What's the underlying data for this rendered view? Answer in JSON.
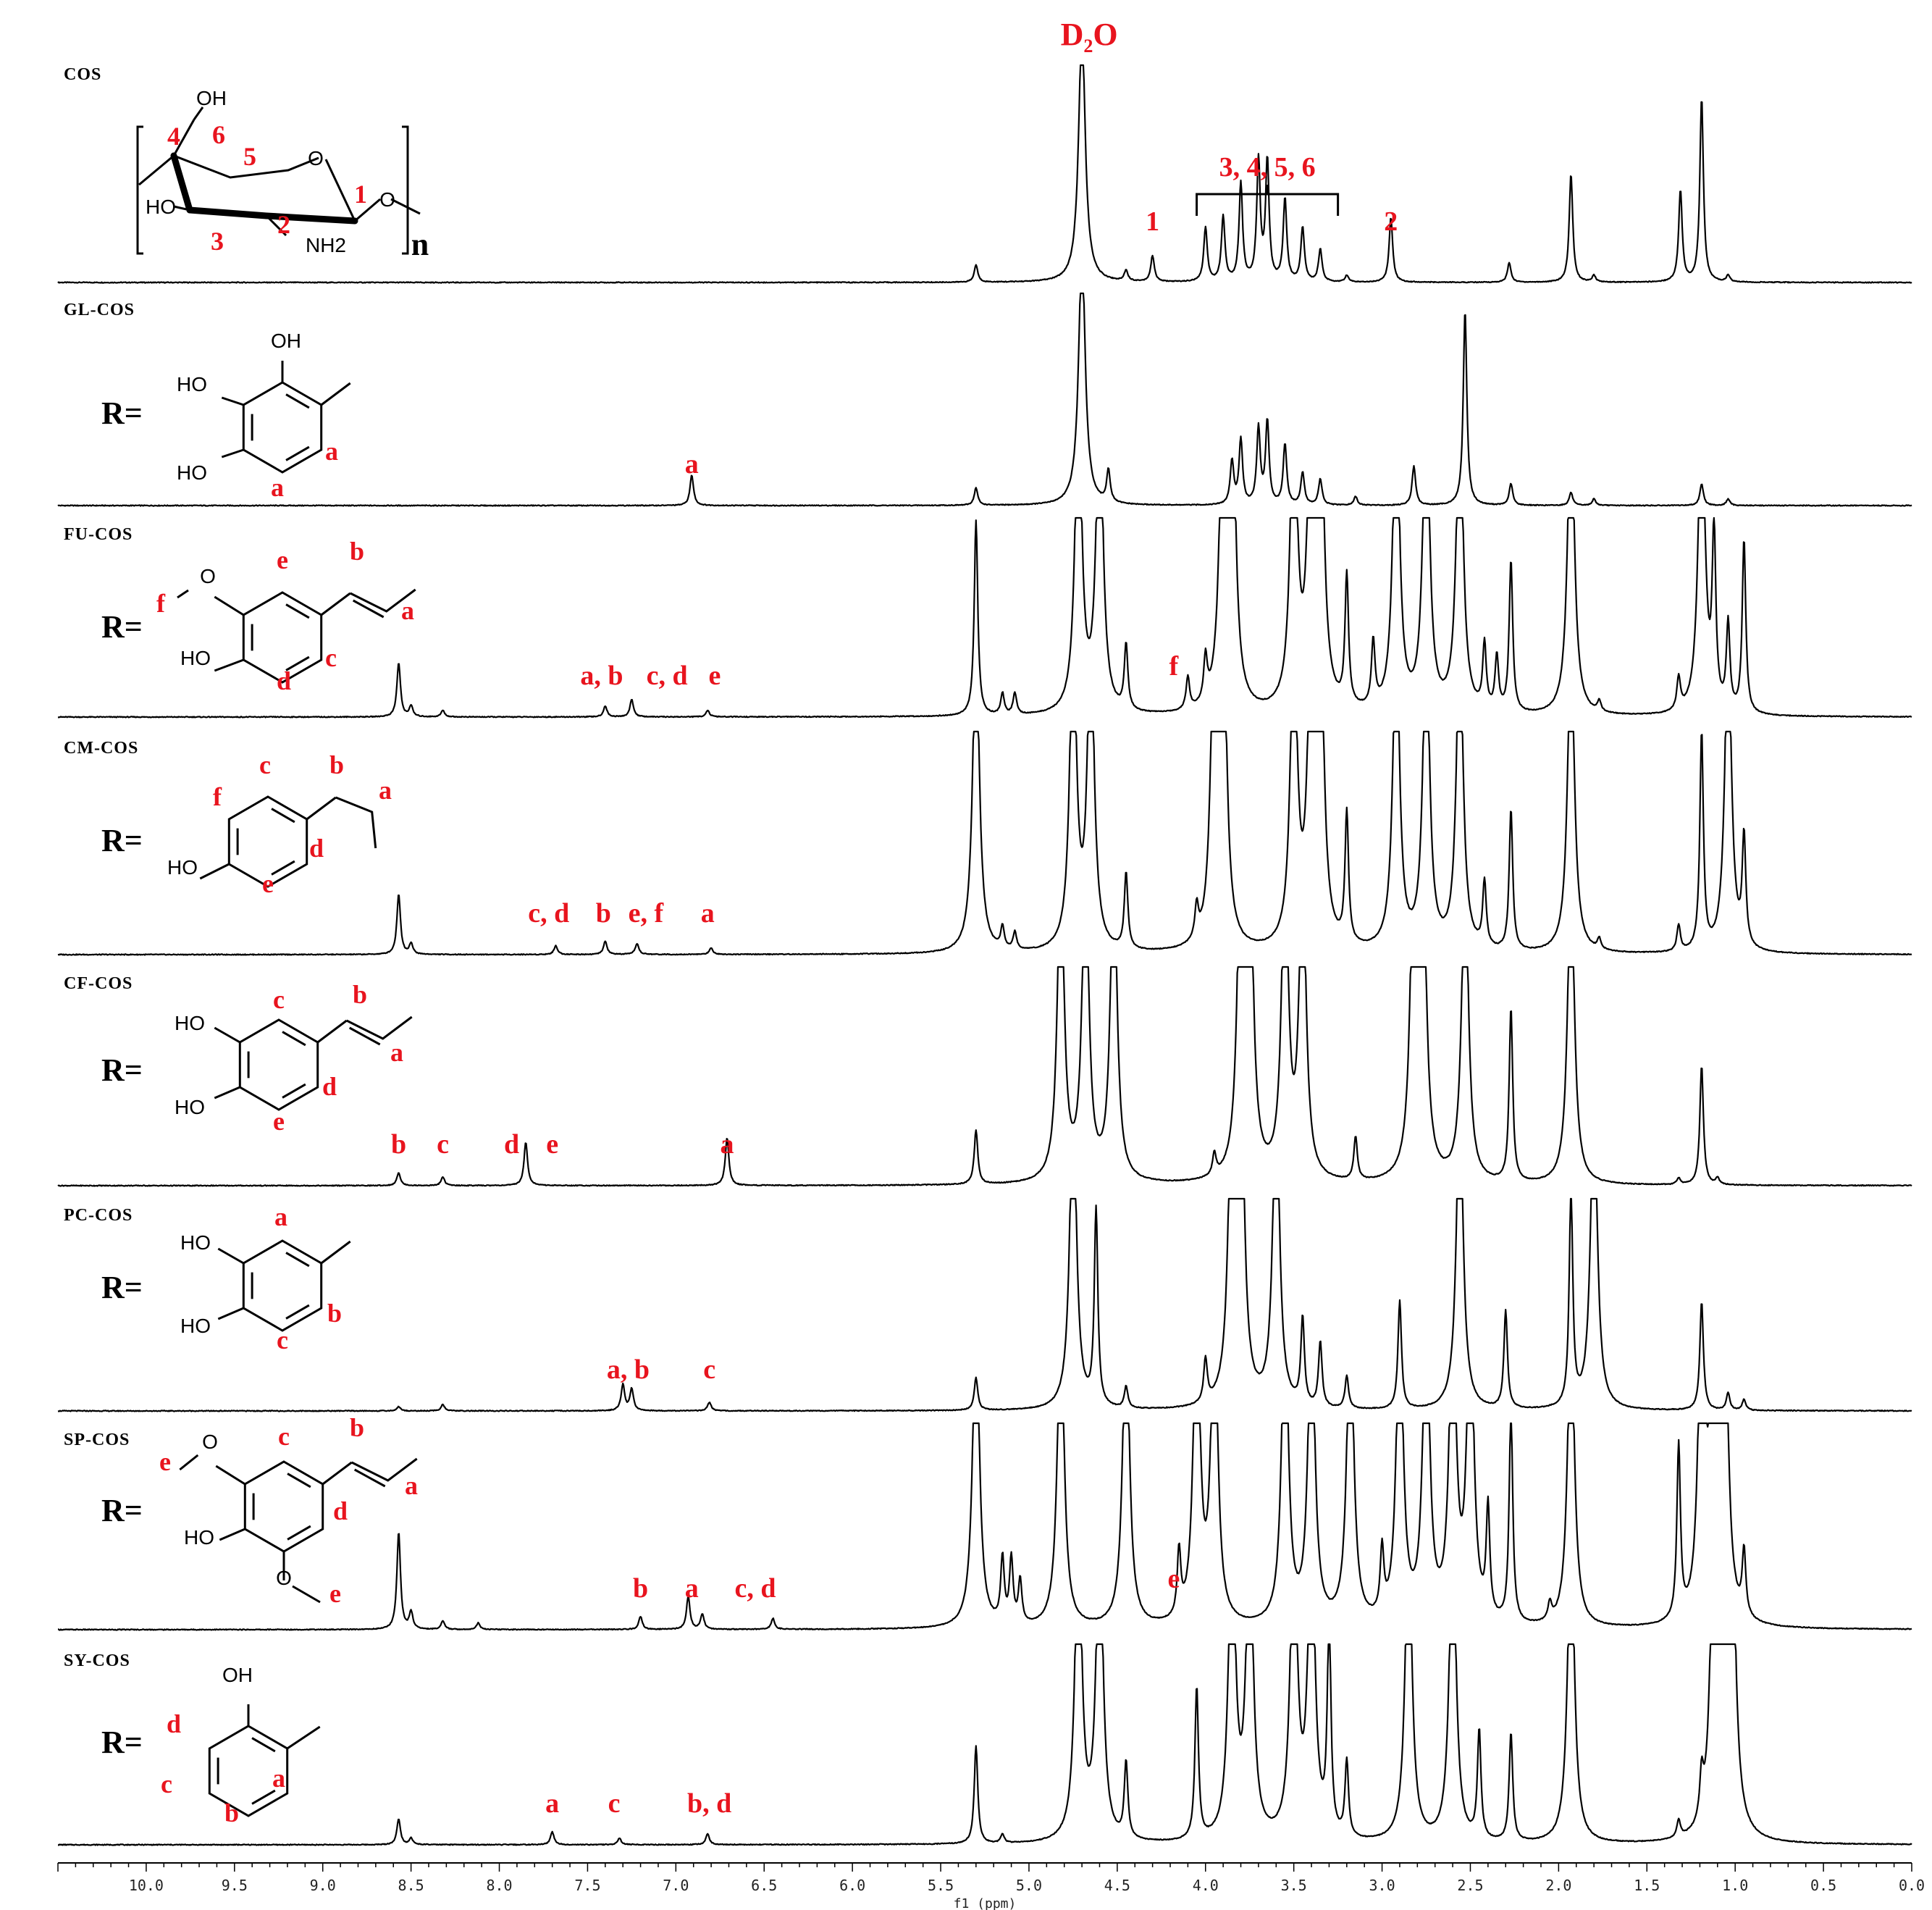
{
  "chart_data": {
    "type": "line",
    "xlabel": "f1 (ppm)",
    "xlim": [
      10.5,
      0.0
    ],
    "ticks": [
      "10.0",
      "9.5",
      "9.0",
      "8.5",
      "8.0",
      "7.5",
      "7.0",
      "6.5",
      "6.0",
      "5.5",
      "5.0",
      "4.5",
      "4.0",
      "3.5",
      "3.0",
      "2.5",
      "2.0",
      "1.5",
      "1.0",
      "0.5",
      "0.0"
    ],
    "ticks_values": [
      10.0,
      9.5,
      9.0,
      8.5,
      8.0,
      7.5,
      7.0,
      6.5,
      6.0,
      5.5,
      5.0,
      4.5,
      4.0,
      3.5,
      3.0,
      2.5,
      2.0,
      1.5,
      1.0,
      0.5,
      0.0
    ],
    "top_annotation": "D2O",
    "top_annotation_ppm": 4.7,
    "series": [
      {
        "name": "COS",
        "peak_labels": [
          {
            "text": "1",
            "ppm": 4.3
          },
          {
            "text": "3, 4, 5, 6",
            "ppm": 3.65,
            "bracket": [
              4.05,
              3.25
            ]
          },
          {
            "text": "2",
            "ppm": 2.95
          }
        ],
        "structure_labels": [
          "OH",
          "HO",
          "NH2",
          "O",
          "O",
          "n",
          "4",
          "6",
          "5",
          "1",
          "3",
          "2"
        ],
        "peaks": [
          [
            5.3,
            0.08
          ],
          [
            4.7,
            1.2
          ],
          [
            4.45,
            0.05
          ],
          [
            4.3,
            0.12
          ],
          [
            4.0,
            0.25
          ],
          [
            3.9,
            0.3
          ],
          [
            3.8,
            0.45
          ],
          [
            3.7,
            0.55
          ],
          [
            3.65,
            0.55
          ],
          [
            3.55,
            0.38
          ],
          [
            3.45,
            0.25
          ],
          [
            3.35,
            0.15
          ],
          [
            3.2,
            0.03
          ],
          [
            2.95,
            0.3
          ],
          [
            2.28,
            0.09
          ],
          [
            1.93,
            0.5
          ],
          [
            1.8,
            0.03
          ],
          [
            1.31,
            0.42
          ],
          [
            1.19,
            0.85
          ],
          [
            1.04,
            0.03
          ]
        ]
      },
      {
        "name": "GL-COS",
        "r_label": "R=",
        "peak_labels": [
          {
            "text": "a",
            "ppm": 6.91
          }
        ],
        "structure_labels": [
          "OH",
          "HO",
          "HO",
          "a",
          "a"
        ],
        "peaks": [
          [
            6.91,
            0.14
          ],
          [
            5.3,
            0.08
          ],
          [
            4.7,
            1.2
          ],
          [
            4.55,
            0.15
          ],
          [
            3.85,
            0.2
          ],
          [
            3.8,
            0.3
          ],
          [
            3.7,
            0.35
          ],
          [
            3.65,
            0.38
          ],
          [
            3.55,
            0.28
          ],
          [
            3.45,
            0.15
          ],
          [
            3.35,
            0.12
          ],
          [
            3.15,
            0.04
          ],
          [
            2.82,
            0.18
          ],
          [
            2.53,
            0.9
          ],
          [
            2.27,
            0.1
          ],
          [
            1.93,
            0.06
          ],
          [
            1.8,
            0.03
          ],
          [
            1.19,
            0.1
          ],
          [
            1.04,
            0.03
          ]
        ]
      },
      {
        "name": "FU-COS",
        "r_label": "R=",
        "peak_labels": [
          {
            "text": "a, b",
            "ppm": 7.42
          },
          {
            "text": "c, d",
            "ppm": 7.05
          },
          {
            "text": "e",
            "ppm": 6.78
          },
          {
            "text": "f",
            "ppm": 4.18
          }
        ],
        "structure_labels": [
          "O",
          "HO",
          "f",
          "e",
          "b",
          "a",
          "c",
          "d"
        ],
        "peaks": [
          [
            8.57,
            0.25
          ],
          [
            8.5,
            0.05
          ],
          [
            8.32,
            0.03
          ],
          [
            7.4,
            0.05
          ],
          [
            7.25,
            0.08
          ],
          [
            6.82,
            0.03
          ],
          [
            5.3,
            0.9
          ],
          [
            5.15,
            0.1
          ],
          [
            5.08,
            0.1
          ],
          [
            4.72,
            1.5
          ],
          [
            4.6,
            1.5
          ],
          [
            4.45,
            0.3
          ],
          [
            4.1,
            0.15
          ],
          [
            4.0,
            0.2
          ],
          [
            3.9,
            1.5
          ],
          [
            3.85,
            1.5
          ],
          [
            3.5,
            1.5
          ],
          [
            3.4,
            1.5
          ],
          [
            3.35,
            1.5
          ],
          [
            3.2,
            0.6
          ],
          [
            3.05,
            0.3
          ],
          [
            2.92,
            1.5
          ],
          [
            2.75,
            1.5
          ],
          [
            2.56,
            1.5
          ],
          [
            2.42,
            0.3
          ],
          [
            2.35,
            0.25
          ],
          [
            2.27,
            0.7
          ],
          [
            1.93,
            1.5
          ],
          [
            1.77,
            0.05
          ],
          [
            1.32,
            0.15
          ],
          [
            1.19,
            1.5
          ],
          [
            1.12,
            0.8
          ],
          [
            1.04,
            0.4
          ],
          [
            0.95,
            0.8
          ]
        ]
      },
      {
        "name": "CM-COS",
        "r_label": "R=",
        "peak_labels": [
          {
            "text": "c, d",
            "ppm": 7.72
          },
          {
            "text": "b",
            "ppm": 7.41
          },
          {
            "text": "e, f",
            "ppm": 7.17
          },
          {
            "text": "a",
            "ppm": 6.82
          }
        ],
        "structure_labels": [
          "HO",
          "f",
          "c",
          "b",
          "a",
          "d",
          "e"
        ],
        "peaks": [
          [
            8.57,
            0.28
          ],
          [
            8.5,
            0.05
          ],
          [
            7.68,
            0.04
          ],
          [
            7.4,
            0.06
          ],
          [
            7.22,
            0.05
          ],
          [
            6.8,
            0.03
          ],
          [
            5.3,
            1.5
          ],
          [
            5.15,
            0.1
          ],
          [
            5.08,
            0.08
          ],
          [
            4.75,
            1.5
          ],
          [
            4.65,
            1.5
          ],
          [
            4.45,
            0.35
          ],
          [
            4.05,
            0.15
          ],
          [
            3.95,
            1.5
          ],
          [
            3.9,
            1.5
          ],
          [
            3.5,
            1.5
          ],
          [
            3.4,
            1.5
          ],
          [
            3.35,
            1.5
          ],
          [
            3.2,
            0.6
          ],
          [
            2.92,
            1.5
          ],
          [
            2.75,
            1.5
          ],
          [
            2.56,
            1.5
          ],
          [
            2.42,
            0.3
          ],
          [
            2.27,
            0.65
          ],
          [
            1.93,
            1.5
          ],
          [
            1.77,
            0.05
          ],
          [
            1.32,
            0.12
          ],
          [
            1.19,
            1.0
          ],
          [
            1.04,
            1.5
          ],
          [
            0.95,
            0.5
          ]
        ]
      },
      {
        "name": "CF-COS",
        "r_label": "R=",
        "peak_labels": [
          {
            "text": "b",
            "ppm": 8.57
          },
          {
            "text": "c",
            "ppm": 8.32
          },
          {
            "text": "d",
            "ppm": 7.93
          },
          {
            "text": "e",
            "ppm": 7.7
          },
          {
            "text": "a",
            "ppm": 6.71
          }
        ],
        "structure_labels": [
          "HO",
          "HO",
          "c",
          "b",
          "a",
          "d",
          "e"
        ],
        "peaks": [
          [
            8.57,
            0.06
          ],
          [
            8.32,
            0.04
          ],
          [
            7.85,
            0.2
          ],
          [
            6.71,
            0.22
          ],
          [
            5.3,
            0.25
          ],
          [
            4.82,
            1.5
          ],
          [
            4.68,
            1.5
          ],
          [
            4.52,
            1.5
          ],
          [
            3.95,
            0.1
          ],
          [
            3.8,
            1.5
          ],
          [
            3.75,
            1.5
          ],
          [
            3.55,
            1.5
          ],
          [
            3.45,
            1.5
          ],
          [
            3.15,
            0.2
          ],
          [
            2.82,
            1.5
          ],
          [
            2.77,
            1.5
          ],
          [
            2.53,
            1.5
          ],
          [
            2.27,
            0.8
          ],
          [
            1.93,
            1.5
          ],
          [
            1.32,
            0.03
          ],
          [
            1.19,
            0.55
          ],
          [
            1.1,
            0.03
          ]
        ]
      },
      {
        "name": "PC-COS",
        "r_label": "R=",
        "peak_labels": [
          {
            "text": "a, b",
            "ppm": 7.27
          },
          {
            "text": "c",
            "ppm": 6.81
          }
        ],
        "structure_labels": [
          "a",
          "HO",
          "HO",
          "b",
          "c"
        ],
        "peaks": [
          [
            8.57,
            0.02
          ],
          [
            8.32,
            0.03
          ],
          [
            7.3,
            0.12
          ],
          [
            7.25,
            0.1
          ],
          [
            6.81,
            0.04
          ],
          [
            5.3,
            0.15
          ],
          [
            4.75,
            1.5
          ],
          [
            4.62,
            0.9
          ],
          [
            4.45,
            0.1
          ],
          [
            4.0,
            0.2
          ],
          [
            3.85,
            1.5
          ],
          [
            3.8,
            1.5
          ],
          [
            3.6,
            1.5
          ],
          [
            3.45,
            0.4
          ],
          [
            3.35,
            0.3
          ],
          [
            3.2,
            0.15
          ],
          [
            2.9,
            0.5
          ],
          [
            2.56,
            1.5
          ],
          [
            2.3,
            0.45
          ],
          [
            1.93,
            1.0
          ],
          [
            1.8,
            1.5
          ],
          [
            1.19,
            0.5
          ],
          [
            1.04,
            0.08
          ],
          [
            0.95,
            0.05
          ]
        ]
      },
      {
        "name": "SP-COS",
        "r_label": "R=",
        "peak_labels": [
          {
            "text": "b",
            "ppm": 7.2
          },
          {
            "text": "a",
            "ppm": 6.91
          },
          {
            "text": "c, d",
            "ppm": 6.55
          },
          {
            "text": "e",
            "ppm": 4.18
          }
        ],
        "structure_labels": [
          "O",
          "O",
          "HO",
          "e",
          "e",
          "c",
          "b",
          "a",
          "d"
        ],
        "peaks": [
          [
            8.57,
            0.45
          ],
          [
            8.5,
            0.08
          ],
          [
            8.32,
            0.04
          ],
          [
            8.12,
            0.03
          ],
          [
            7.2,
            0.06
          ],
          [
            6.93,
            0.15
          ],
          [
            6.85,
            0.07
          ],
          [
            6.45,
            0.05
          ],
          [
            5.3,
            1.5
          ],
          [
            5.15,
            0.3
          ],
          [
            5.1,
            0.3
          ],
          [
            5.05,
            0.2
          ],
          [
            4.82,
            1.5
          ],
          [
            4.45,
            1.5
          ],
          [
            4.15,
            0.3
          ],
          [
            4.05,
            1.5
          ],
          [
            3.95,
            1.5
          ],
          [
            3.55,
            1.5
          ],
          [
            3.4,
            1.5
          ],
          [
            3.18,
            1.5
          ],
          [
            3.0,
            0.3
          ],
          [
            2.9,
            1.5
          ],
          [
            2.75,
            1.5
          ],
          [
            2.6,
            1.5
          ],
          [
            2.5,
            1.5
          ],
          [
            2.4,
            0.5
          ],
          [
            2.27,
            1.0
          ],
          [
            2.05,
            0.08
          ],
          [
            1.93,
            1.5
          ],
          [
            1.32,
            0.8
          ],
          [
            1.19,
            1.5
          ],
          [
            1.12,
            1.5
          ],
          [
            1.06,
            1.5
          ],
          [
            0.95,
            0.3
          ]
        ]
      },
      {
        "name": "SY-COS",
        "r_label": "R=",
        "peak_labels": [
          {
            "text": "a",
            "ppm": 7.7
          },
          {
            "text": "c",
            "ppm": 7.35
          },
          {
            "text": "b, d",
            "ppm": 6.81
          }
        ],
        "structure_labels": [
          "OH",
          "d",
          "c",
          "b",
          "a"
        ],
        "peaks": [
          [
            8.57,
            0.12
          ],
          [
            8.5,
            0.03
          ],
          [
            7.7,
            0.06
          ],
          [
            7.32,
            0.03
          ],
          [
            6.82,
            0.05
          ],
          [
            5.3,
            0.45
          ],
          [
            5.15,
            0.04
          ],
          [
            4.72,
            1.5
          ],
          [
            4.6,
            1.5
          ],
          [
            4.45,
            0.35
          ],
          [
            4.05,
            0.7
          ],
          [
            3.85,
            1.5
          ],
          [
            3.75,
            1.5
          ],
          [
            3.5,
            1.5
          ],
          [
            3.4,
            1.5
          ],
          [
            3.3,
            1.0
          ],
          [
            3.2,
            0.35
          ],
          [
            2.85,
            1.5
          ],
          [
            2.6,
            1.5
          ],
          [
            2.45,
            0.5
          ],
          [
            2.27,
            0.5
          ],
          [
            1.93,
            1.5
          ],
          [
            1.32,
            0.08
          ],
          [
            1.19,
            0.2
          ],
          [
            1.12,
            1.5
          ],
          [
            1.06,
            1.5
          ],
          [
            1.02,
            1.5
          ]
        ]
      }
    ]
  }
}
